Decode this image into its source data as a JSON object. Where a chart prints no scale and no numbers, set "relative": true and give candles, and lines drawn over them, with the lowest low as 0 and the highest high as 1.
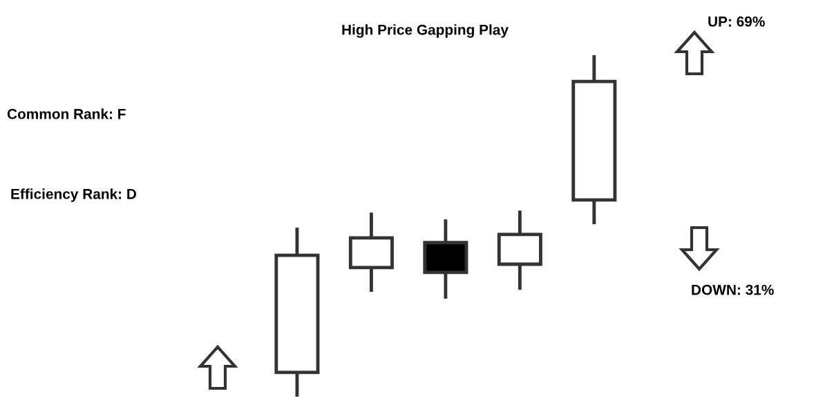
{
  "chart_data": {
    "type": "candlestick",
    "title": "High Price Gapping Play",
    "relative": true,
    "categories": [
      null,
      null,
      null,
      null,
      null
    ],
    "ohlc": [
      [
        0.071,
        0.495,
        0.0,
        0.414
      ],
      [
        0.378,
        0.539,
        0.307,
        0.465
      ],
      [
        0.451,
        0.519,
        0.287,
        0.364
      ],
      [
        0.388,
        0.545,
        0.313,
        0.475
      ],
      [
        0.576,
        1.0,
        0.505,
        0.923
      ]
    ],
    "colors": [
      "#ffffff",
      "#ffffff",
      "#000000",
      "#ffffff",
      "#ffffff"
    ],
    "annotations": [
      "Common Rank: F",
      "Efficiency Rank: D",
      "UP: 69%",
      "DOWN: 31%"
    ]
  }
}
